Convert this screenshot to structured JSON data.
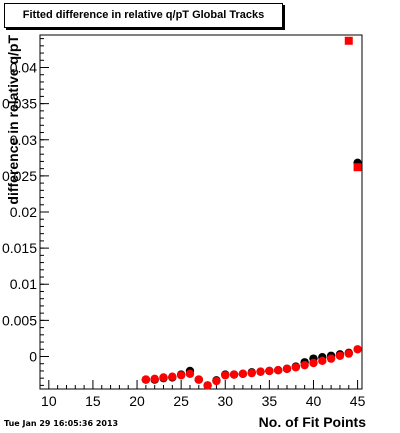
{
  "header": {
    "title": "Fitted difference in relative q/pT  Global Tracks"
  },
  "footer": {
    "timestamp": "Tue Jan 29 16:05:36 2013"
  },
  "colors": {
    "series_black": "#000000",
    "series_red": "#ff0000",
    "frame": "#000000",
    "background": "#ffffff"
  },
  "chart_data": {
    "type": "scatter",
    "title": "Fitted difference in relative q/pT  Global Tracks",
    "xlabel": "No. of Fit Points",
    "ylabel": "difference in relative q/pT",
    "xlim": [
      9,
      45.5
    ],
    "ylim": [
      -0.0045,
      0.0445
    ],
    "xticks": [
      10,
      15,
      20,
      25,
      30,
      35,
      40,
      45
    ],
    "xtick_labels": [
      "10",
      "15",
      "20",
      "25",
      "30",
      "35",
      "40",
      "45"
    ],
    "yticks": [
      0,
      0.005,
      0.01,
      0.015,
      0.02,
      0.025,
      0.03,
      0.035,
      0.04
    ],
    "ytick_labels": [
      "0",
      "0.005",
      "0.01",
      "0.015",
      "0.02",
      "0.025",
      "0.03",
      "0.035",
      "0.04"
    ],
    "grid": false,
    "legend": "none",
    "series": [
      {
        "color": "#000000",
        "marker": "circle",
        "x": [
          21,
          22,
          23,
          24,
          25,
          26,
          27,
          28,
          29,
          30,
          31,
          32,
          33,
          34,
          35,
          36,
          37,
          38,
          39,
          40,
          41,
          42,
          43,
          44,
          45
        ],
        "y": [
          -0.0032,
          -0.0032,
          -0.003,
          -0.0029,
          -0.0025,
          -0.002,
          -0.0032,
          -0.004,
          -0.0033,
          -0.0025,
          -0.0025,
          -0.0024,
          -0.0022,
          -0.0021,
          -0.002,
          -0.0019,
          -0.0017,
          -0.0014,
          -0.0008,
          -0.0003,
          -0.0001,
          0.0001,
          0.0003,
          0.0005,
          0.0268
        ]
      },
      {
        "color": "#ff0000",
        "marker": "mixed",
        "x": [
          21,
          22,
          23,
          24,
          25,
          26,
          27,
          28,
          29,
          30,
          31,
          32,
          33,
          34,
          35,
          36,
          37,
          38,
          39,
          40,
          41,
          42,
          43,
          44,
          45,
          44,
          45
        ],
        "y": [
          -0.0032,
          -0.0031,
          -0.0029,
          -0.0028,
          -0.0026,
          -0.0024,
          -0.0032,
          -0.004,
          -0.0034,
          -0.0026,
          -0.0025,
          -0.0024,
          -0.0023,
          -0.0021,
          -0.002,
          -0.0019,
          -0.0017,
          -0.0015,
          -0.0012,
          -0.0009,
          -0.0006,
          -0.0003,
          0.0001,
          0.0004,
          0.001,
          0.0437,
          0.0262
        ],
        "markers": [
          "circle",
          "circle",
          "circle",
          "circle",
          "circle",
          "circle",
          "circle",
          "circle",
          "circle",
          "circle",
          "circle",
          "circle",
          "circle",
          "circle",
          "circle",
          "circle",
          "circle",
          "circle",
          "circle",
          "circle",
          "circle",
          "circle",
          "circle",
          "circle",
          "circle",
          "square",
          "square"
        ]
      }
    ]
  }
}
